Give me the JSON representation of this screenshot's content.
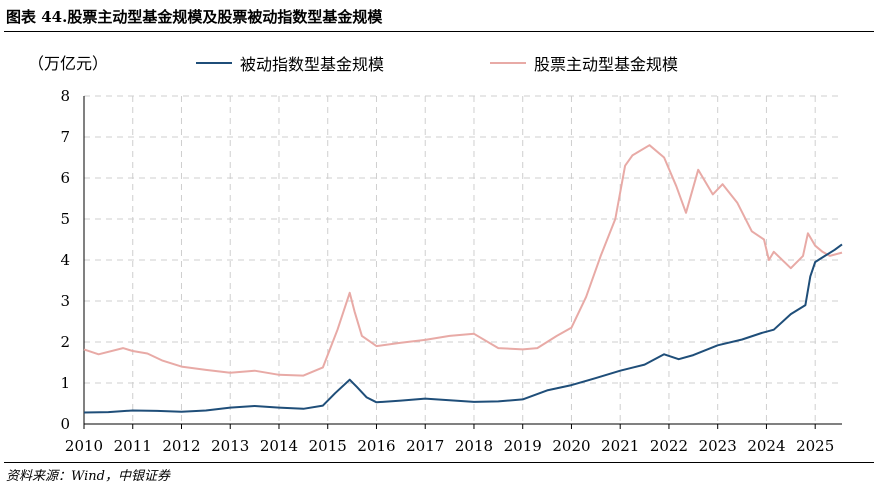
{
  "header": {
    "title": "图表 44.股票主动型基金规模及股票被动指数型基金规模"
  },
  "footer": {
    "source": "资料来源：Wind，中银证券"
  },
  "chart_data": {
    "type": "line",
    "unit_label": "（万亿元）",
    "ylim": [
      0,
      8
    ],
    "yticks": [
      0,
      1,
      2,
      3,
      4,
      5,
      6,
      7,
      8
    ],
    "xlim": [
      2010,
      2025.55
    ],
    "xticks": [
      2010,
      2011,
      2012,
      2013,
      2014,
      2015,
      2016,
      2017,
      2018,
      2019,
      2020,
      2021,
      2022,
      2023,
      2024,
      2025
    ],
    "grid": true,
    "legend_position": "top",
    "series": [
      {
        "name": "被动指数型基金规模",
        "color": "#1f4e79",
        "points": [
          [
            2010.0,
            0.28
          ],
          [
            2010.5,
            0.29
          ],
          [
            2011.0,
            0.33
          ],
          [
            2011.5,
            0.32
          ],
          [
            2012.0,
            0.3
          ],
          [
            2012.5,
            0.33
          ],
          [
            2013.0,
            0.4
          ],
          [
            2013.5,
            0.44
          ],
          [
            2014.0,
            0.4
          ],
          [
            2014.5,
            0.37
          ],
          [
            2014.9,
            0.45
          ],
          [
            2015.15,
            0.75
          ],
          [
            2015.45,
            1.08
          ],
          [
            2015.6,
            0.9
          ],
          [
            2015.8,
            0.65
          ],
          [
            2016.0,
            0.53
          ],
          [
            2016.5,
            0.57
          ],
          [
            2017.0,
            0.62
          ],
          [
            2017.5,
            0.58
          ],
          [
            2018.0,
            0.54
          ],
          [
            2018.5,
            0.55
          ],
          [
            2019.0,
            0.6
          ],
          [
            2019.5,
            0.82
          ],
          [
            2020.0,
            0.95
          ],
          [
            2020.5,
            1.12
          ],
          [
            2021.0,
            1.3
          ],
          [
            2021.5,
            1.45
          ],
          [
            2021.9,
            1.7
          ],
          [
            2022.2,
            1.58
          ],
          [
            2022.5,
            1.68
          ],
          [
            2023.0,
            1.92
          ],
          [
            2023.5,
            2.06
          ],
          [
            2023.9,
            2.22
          ],
          [
            2024.15,
            2.3
          ],
          [
            2024.5,
            2.68
          ],
          [
            2024.8,
            2.9
          ],
          [
            2024.9,
            3.6
          ],
          [
            2025.0,
            3.95
          ],
          [
            2025.2,
            4.1
          ],
          [
            2025.4,
            4.25
          ],
          [
            2025.55,
            4.38
          ]
        ]
      },
      {
        "name": "股票主动型基金规模",
        "color": "#e8aaa6",
        "points": [
          [
            2010.0,
            1.82
          ],
          [
            2010.3,
            1.7
          ],
          [
            2010.8,
            1.85
          ],
          [
            2011.0,
            1.78
          ],
          [
            2011.3,
            1.72
          ],
          [
            2011.6,
            1.55
          ],
          [
            2012.0,
            1.4
          ],
          [
            2012.5,
            1.32
          ],
          [
            2013.0,
            1.25
          ],
          [
            2013.5,
            1.3
          ],
          [
            2014.0,
            1.2
          ],
          [
            2014.5,
            1.18
          ],
          [
            2014.9,
            1.38
          ],
          [
            2015.2,
            2.3
          ],
          [
            2015.45,
            3.2
          ],
          [
            2015.55,
            2.75
          ],
          [
            2015.7,
            2.15
          ],
          [
            2016.0,
            1.9
          ],
          [
            2016.5,
            1.98
          ],
          [
            2017.0,
            2.05
          ],
          [
            2017.5,
            2.15
          ],
          [
            2018.0,
            2.2
          ],
          [
            2018.5,
            1.85
          ],
          [
            2019.0,
            1.82
          ],
          [
            2019.3,
            1.85
          ],
          [
            2019.7,
            2.15
          ],
          [
            2020.0,
            2.35
          ],
          [
            2020.3,
            3.1
          ],
          [
            2020.6,
            4.1
          ],
          [
            2020.9,
            5.0
          ],
          [
            2021.1,
            6.3
          ],
          [
            2021.25,
            6.55
          ],
          [
            2021.6,
            6.8
          ],
          [
            2021.9,
            6.5
          ],
          [
            2022.15,
            5.8
          ],
          [
            2022.35,
            5.15
          ],
          [
            2022.6,
            6.2
          ],
          [
            2022.9,
            5.6
          ],
          [
            2023.1,
            5.85
          ],
          [
            2023.4,
            5.4
          ],
          [
            2023.7,
            4.7
          ],
          [
            2023.95,
            4.5
          ],
          [
            2024.05,
            4.0
          ],
          [
            2024.15,
            4.2
          ],
          [
            2024.5,
            3.8
          ],
          [
            2024.75,
            4.1
          ],
          [
            2024.85,
            4.65
          ],
          [
            2025.0,
            4.35
          ],
          [
            2025.15,
            4.2
          ],
          [
            2025.3,
            4.1
          ],
          [
            2025.55,
            4.18
          ]
        ]
      }
    ]
  }
}
